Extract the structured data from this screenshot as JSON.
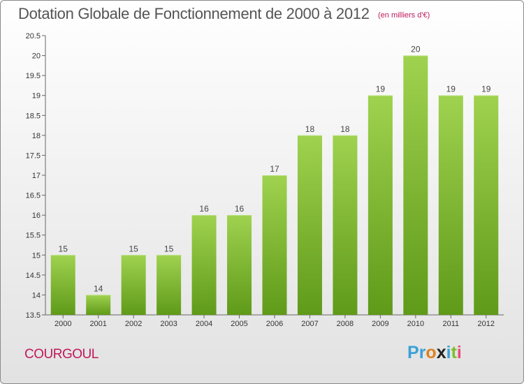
{
  "header": {
    "title": "Dotation Globale de Fonctionnement de 2000 à 2012",
    "subtitle": "(en milliers d'€)"
  },
  "footer": {
    "city": "COURGOUL",
    "logo_letters": [
      {
        "ch": "P",
        "color": "#3aa0d8"
      },
      {
        "ch": "r",
        "color": "#3aa0d8"
      },
      {
        "ch": "o",
        "color": "#e07f1c"
      },
      {
        "ch": "x",
        "color": "#222222"
      },
      {
        "ch": "i",
        "color": "#3aa0d8"
      },
      {
        "ch": "t",
        "color": "#7bbf2a"
      },
      {
        "ch": "i",
        "color": "#e74c7a"
      }
    ]
  },
  "colors": {
    "bar_top": "#9fd24f",
    "bar_bottom": "#5f9a19",
    "title": "#555555",
    "accent": "#c0185a"
  },
  "chart_data": {
    "type": "bar",
    "title": "Dotation Globale de Fonctionnement de 2000 à 2012",
    "subtitle": "(en milliers d'€)",
    "xlabel": "",
    "ylabel": "",
    "categories": [
      "2000",
      "2001",
      "2002",
      "2003",
      "2004",
      "2005",
      "2006",
      "2007",
      "2008",
      "2009",
      "2010",
      "2011",
      "2012"
    ],
    "values": [
      15,
      14,
      15,
      15,
      16,
      16,
      17,
      18,
      18,
      19,
      20,
      19,
      19
    ],
    "value_labels": [
      "15",
      "14",
      "15",
      "15",
      "16",
      "16",
      "17",
      "18",
      "18",
      "19",
      "20",
      "19",
      "19"
    ],
    "ylim": [
      13.5,
      20.5
    ],
    "yticks": [
      13.5,
      14,
      14.5,
      15,
      15.5,
      16,
      16.5,
      17,
      17.5,
      18,
      18.5,
      19,
      19.5,
      20,
      20.5
    ],
    "ytick_labels": [
      "13.5",
      "14",
      "14.5",
      "15",
      "15.5",
      "16",
      "16.5",
      "17",
      "17.5",
      "18",
      "18.5",
      "19",
      "19.5",
      "20",
      "20.5"
    ],
    "grid": false,
    "legend": "none"
  }
}
